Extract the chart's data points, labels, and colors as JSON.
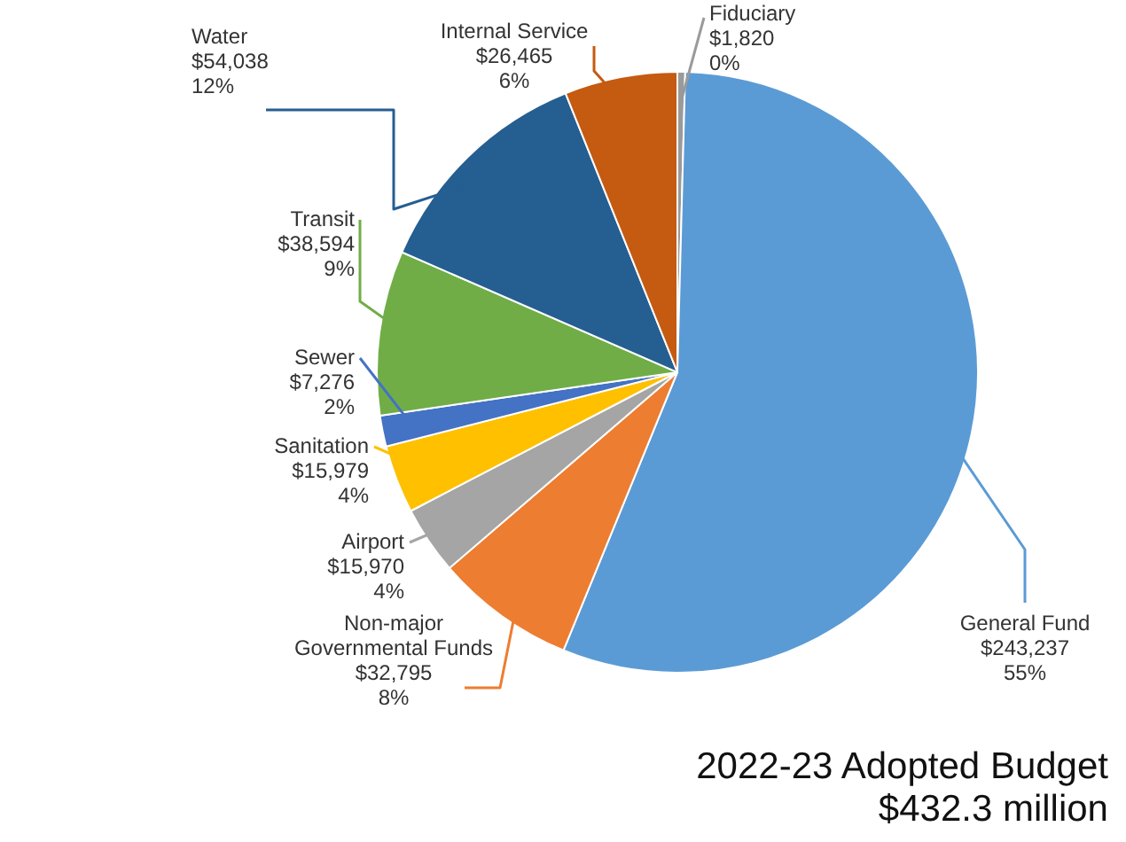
{
  "chart_data": {
    "type": "pie",
    "title": "2022-23 Adopted Budget",
    "subtitle": "$432.3 million",
    "categories": [
      "Fiduciary",
      "General Fund",
      "Non-major\nGovernmental Funds",
      "Airport",
      "Sanitation",
      "Sewer",
      "Transit",
      "Water",
      "Internal Service"
    ],
    "values": [
      1820,
      243237,
      32795,
      15970,
      15979,
      7276,
      38594,
      54038,
      26465
    ],
    "colors": [
      "#9a9a9a",
      "#5b9bd5",
      "#ed7d31",
      "#a5a5a5",
      "#ffc000",
      "#4472c4",
      "#70ad47",
      "#255e91",
      "#c55a11"
    ],
    "value_labels": [
      "$1,820\n0%",
      "$243,237\n55%",
      "$32,795\n8%",
      "$15,970\n4%",
      "$15,979\n4%",
      "$7,276\n2%",
      "$38,594\n9%",
      "$54,038\n12%",
      "$26,465\n6%"
    ]
  }
}
